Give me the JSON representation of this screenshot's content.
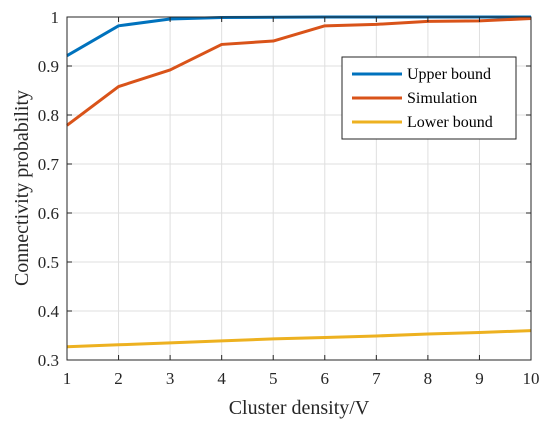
{
  "chart_data": {
    "type": "line",
    "xlabel": "Cluster density/V",
    "ylabel": "Connectivity probability",
    "x": [
      1,
      2,
      3,
      4,
      5,
      6,
      7,
      8,
      9,
      10
    ],
    "xlim": [
      1,
      10
    ],
    "ylim": [
      0.3,
      1
    ],
    "xticks": [
      "1",
      "2",
      "3",
      "4",
      "5",
      "6",
      "7",
      "8",
      "9",
      "10"
    ],
    "yticks": [
      "0.3",
      "0.4",
      "0.5",
      "0.6",
      "0.7",
      "0.8",
      "0.9",
      "1"
    ],
    "ytick_values": [
      0.3,
      0.4,
      0.5,
      0.6,
      0.7,
      0.8,
      0.9,
      1.0
    ],
    "grid": true,
    "legend_position": "top-right",
    "series": [
      {
        "name": "Upper bound",
        "color": "#0072BD",
        "values": [
          0.921,
          0.982,
          0.996,
          0.999,
          0.9995,
          1.0,
          1.0,
          1.0,
          1.0,
          1.0
        ]
      },
      {
        "name": "Simulation",
        "color": "#D95319",
        "values": [
          0.779,
          0.858,
          0.892,
          0.944,
          0.951,
          0.982,
          0.985,
          0.991,
          0.992,
          0.997
        ]
      },
      {
        "name": "Lower bound",
        "color": "#EDB120",
        "values": [
          0.327,
          0.331,
          0.335,
          0.339,
          0.343,
          0.346,
          0.349,
          0.353,
          0.356,
          0.36
        ]
      }
    ]
  }
}
